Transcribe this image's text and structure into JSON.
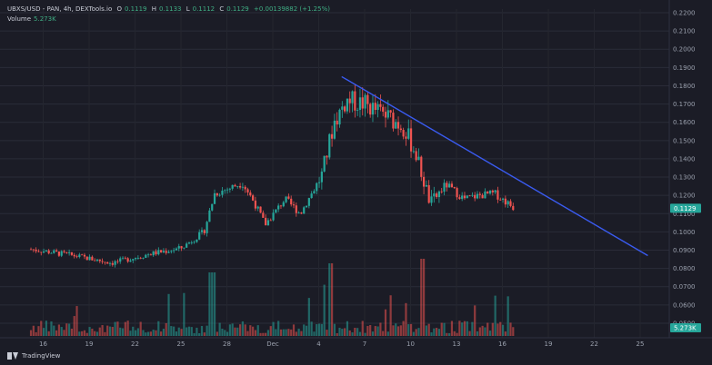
{
  "header": {
    "symbol": "UBXS/USD - PAN, 4h, DEXTools.io",
    "open_label": "O",
    "open_value": "0.1119",
    "high_label": "H",
    "high_value": "0.1133",
    "low_label": "L",
    "low_value": "0.1112",
    "close_label": "C",
    "close_value": "0.1129",
    "change": "+0.00139882 (+1.25%)",
    "volume_label": "Volume",
    "volume_value": "5.273K"
  },
  "footer": {
    "brand": "TradingView"
  },
  "colors": {
    "up": "#26a69a",
    "down": "#ef5350",
    "trendline": "#3a5bf0",
    "background": "#1b1c26",
    "price_tag": "#26a69a"
  },
  "chart_data": {
    "type": "candlestick",
    "title": "UBXS/USD - PAN, 4h, DEXTools.io",
    "xlabel": "",
    "ylabel": "",
    "x_ticks": [
      "16",
      "19",
      "22",
      "25",
      "28",
      "Dec",
      "4",
      "7",
      "10",
      "13",
      "16",
      "19",
      "22",
      "25"
    ],
    "x_tick_days": [
      -15,
      -12,
      -9,
      -6,
      -3,
      0,
      3,
      6,
      9,
      12,
      15,
      18,
      21,
      24
    ],
    "y_ticks": [
      "0.2200",
      "0.2100",
      "0.2000",
      "0.1900",
      "0.1800",
      "0.1700",
      "0.1600",
      "0.1500",
      "0.1400",
      "0.1300",
      "0.1200",
      "0.1100",
      "0.1000",
      "0.0900",
      "0.0800",
      "0.0700",
      "0.0600",
      "0.0500"
    ],
    "ylim": [
      0.045,
      0.222
    ],
    "grid": true,
    "last_price": "0.1129",
    "volume_last": "5.273K",
    "trendline": {
      "start": {
        "day": 4.5,
        "price": 0.185
      },
      "end": {
        "day": 24.5,
        "price": 0.087
      }
    },
    "price_anchors": [
      {
        "day": -15.8,
        "price": 0.0905
      },
      {
        "day": -13.0,
        "price": 0.087
      },
      {
        "day": -10.5,
        "price": 0.083
      },
      {
        "day": -8.0,
        "price": 0.088
      },
      {
        "day": -6.0,
        "price": 0.091
      },
      {
        "day": -4.5,
        "price": 0.1
      },
      {
        "day": -3.8,
        "price": 0.121
      },
      {
        "day": -2.8,
        "price": 0.124
      },
      {
        "day": -2.0,
        "price": 0.127
      },
      {
        "day": -1.2,
        "price": 0.116
      },
      {
        "day": -0.5,
        "price": 0.104
      },
      {
        "day": 0.8,
        "price": 0.118
      },
      {
        "day": 1.8,
        "price": 0.11
      },
      {
        "day": 3.2,
        "price": 0.131
      },
      {
        "day": 4.0,
        "price": 0.16
      },
      {
        "day": 4.8,
        "price": 0.172
      },
      {
        "day": 6.0,
        "price": 0.17
      },
      {
        "day": 7.5,
        "price": 0.163
      },
      {
        "day": 8.5,
        "price": 0.158
      },
      {
        "day": 9.3,
        "price": 0.144
      },
      {
        "day": 10.3,
        "price": 0.115
      },
      {
        "day": 11.3,
        "price": 0.126
      },
      {
        "day": 12.5,
        "price": 0.118
      },
      {
        "day": 13.5,
        "price": 0.12
      },
      {
        "day": 14.5,
        "price": 0.121
      },
      {
        "day": 15.8,
        "price": 0.1129
      }
    ]
  }
}
